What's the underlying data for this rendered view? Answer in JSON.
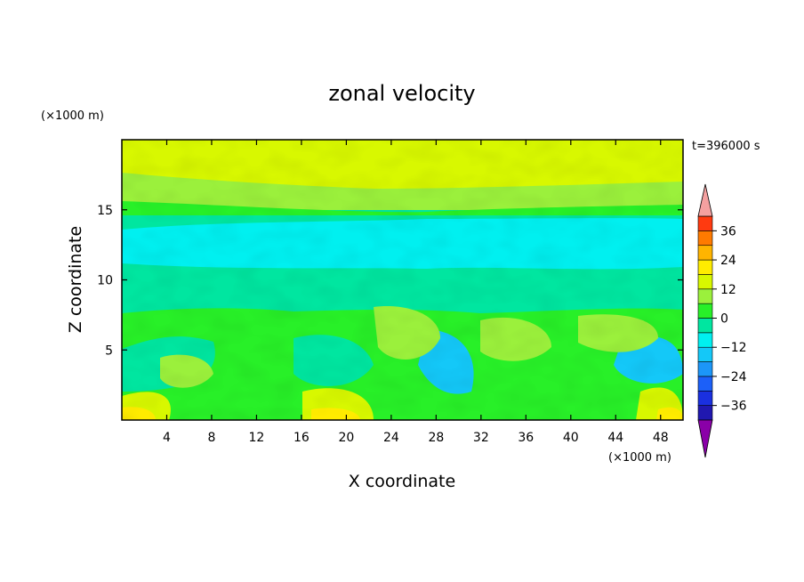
{
  "chart_data": {
    "type": "heatmap",
    "title": "zonal velocity",
    "xlabel": "X coordinate",
    "ylabel": "Z coordinate",
    "x_unit": "(×1000 m)",
    "y_unit": "(×1000 m)",
    "time_label": "t=396000 s",
    "xlim": [
      0,
      50
    ],
    "ylim": [
      0,
      20
    ],
    "xticks": [
      4,
      8,
      12,
      16,
      20,
      24,
      28,
      32,
      36,
      40,
      44,
      48
    ],
    "yticks": [
      5,
      10,
      15
    ],
    "colorbar": {
      "levels": [
        -42,
        -36,
        -30,
        -24,
        -18,
        -12,
        -6,
        0,
        6,
        12,
        18,
        24,
        30,
        36,
        42
      ],
      "tick_values": [
        -36,
        -24,
        -12,
        0,
        12,
        24,
        36
      ],
      "colors": [
        "#5a0f8f",
        "#2018b0",
        "#1a30e0",
        "#1c60f8",
        "#1c96f8",
        "#14c8f8",
        "#00f0f0",
        "#00e6a0",
        "#28f028",
        "#9bf03c",
        "#d8f800",
        "#ffec00",
        "#ffb400",
        "#ff7a00",
        "#ff3a10",
        "#ff0000"
      ],
      "extend_low_color": "#8a00a8",
      "extend_high_color": "#f4a0a0"
    },
    "field_description_values": {
      "upper_layer_z_16_20": "6 to 12",
      "tropopause_band_z_15": "0 to 6",
      "mid_layer_z_9_15": "-12 to -6",
      "lower_layer_z_0_8": "-6 to 12"
    }
  }
}
